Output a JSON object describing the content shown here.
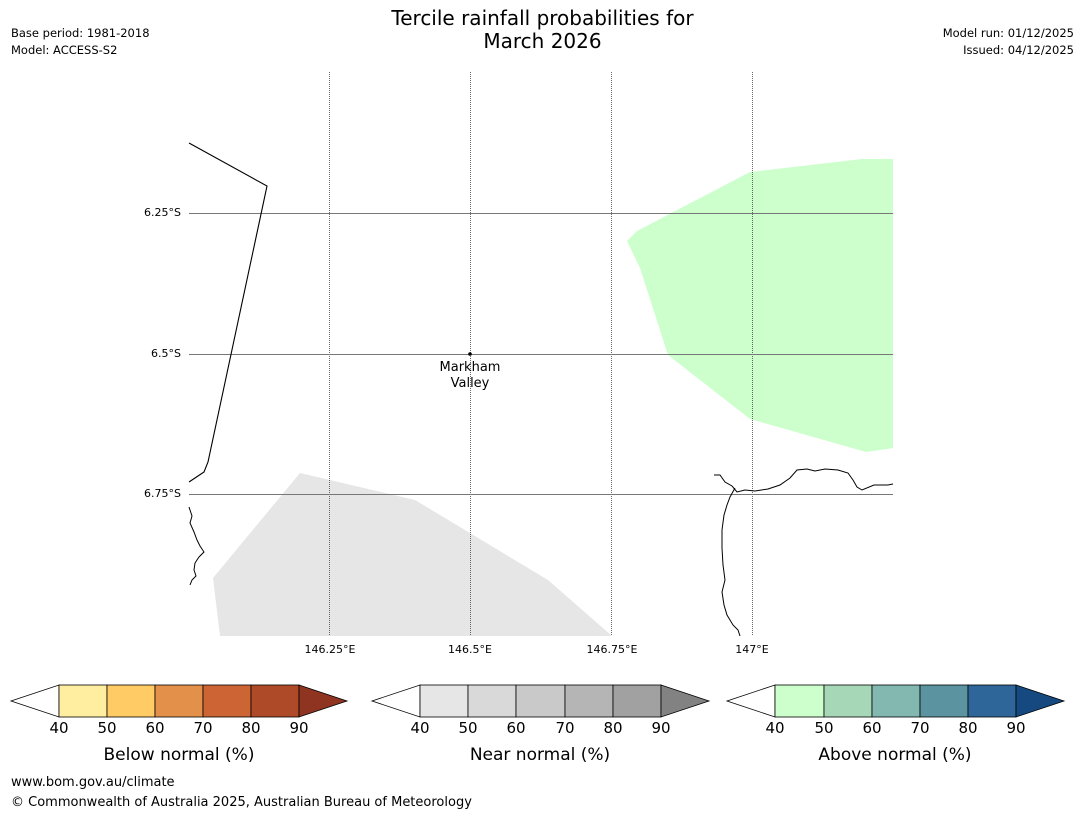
{
  "title_line1": "Tercile rainfall probabilities for",
  "title_line2": "March 2026",
  "base_period": "Base period: 1981-2018",
  "model": "Model: ACCESS-S2",
  "model_run": "Model run: 01/12/2025",
  "issued": "Issued: 04/12/2025",
  "map": {
    "lat_labels": [
      "6.25°S",
      "6.5°S",
      "6.75°S"
    ],
    "lon_labels": [
      "146.25°E",
      "146.5°E",
      "146.75°E",
      "147°E"
    ],
    "place": {
      "name_line1": "Markham",
      "name_line2": "Valley"
    },
    "colors": {
      "above_region": "#ccffcc",
      "near_region": "#e6e6e6"
    }
  },
  "colorbars": [
    {
      "label": "Below normal (%)",
      "ticks": [
        "40",
        "50",
        "60",
        "70",
        "80",
        "90"
      ],
      "colors": [
        "#ffeda0",
        "#fecb64",
        "#e3914a",
        "#cc6533",
        "#ae4a27",
        "#8f3421"
      ]
    },
    {
      "label": "Near normal (%)",
      "ticks": [
        "40",
        "50",
        "60",
        "70",
        "80",
        "90"
      ],
      "colors": [
        "#e6e6e6",
        "#d9d9d9",
        "#c9c9c9",
        "#b5b5b5",
        "#a1a1a1",
        "#828282"
      ]
    },
    {
      "label": "Above normal (%)",
      "ticks": [
        "40",
        "50",
        "60",
        "70",
        "80",
        "90"
      ],
      "colors": [
        "#ccffcc",
        "#a6d8b8",
        "#82b8b0",
        "#5b94a0",
        "#2f6699",
        "#15497f"
      ]
    }
  ],
  "footer_url": "www.bom.gov.au/climate",
  "footer_copyright": "© Commonwealth of Australia 2025, Australian Bureau of Meteorology"
}
